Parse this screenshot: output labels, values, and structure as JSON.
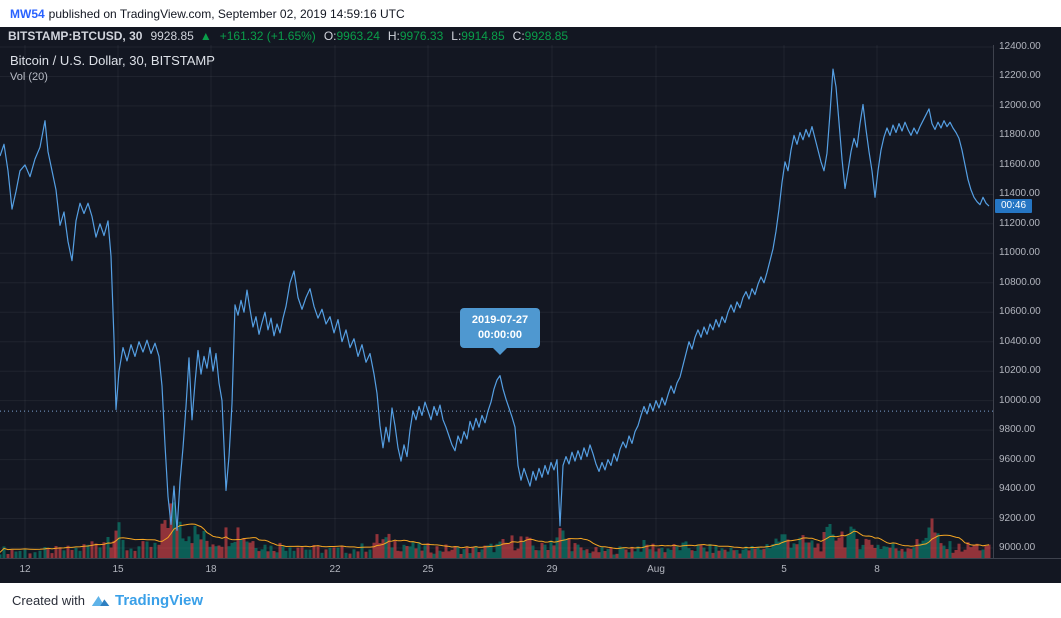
{
  "header": {
    "author": "MW54",
    "published_text": "published on TradingView.com, September 02, 2019 14:59:16 UTC"
  },
  "symbol_bar": {
    "symbol": "BITSTAMP:BTCUSD, 30",
    "last_price": "9928.85",
    "direction_arrow": "▲",
    "change": "+161.32 (+1.65%)",
    "ohlc": {
      "o_label": "O:",
      "o": "9963.24",
      "h_label": "H:",
      "h": "9976.33",
      "l_label": "L:",
      "l": "9914.85",
      "c_label": "C:",
      "c": "9928.85"
    }
  },
  "chart": {
    "legend": "Bitcoin / U.S. Dollar, 30, BITSTAMP",
    "vol_legend": "Vol (20)",
    "tooltip": {
      "date": "2019-07-27",
      "time": "00:00:00"
    },
    "countdown": "00:46"
  },
  "chart_data": {
    "type": "line",
    "title": "Bitcoin / U.S. Dollar, 30, BITSTAMP",
    "symbol": "BITSTAMP:BTCUSD",
    "interval": "30",
    "y_min": 9000,
    "y_max": 12400,
    "y_step": 200,
    "last_price": 9928.85,
    "ohlc": {
      "open": 9963.24,
      "high": 9976.33,
      "low": 9914.85,
      "close": 9928.85
    },
    "change": 161.32,
    "change_pct": 1.65,
    "x_ticks": {
      "labels": [
        "12",
        "15",
        "18",
        "22",
        "25",
        "29",
        "Aug",
        "5",
        "8"
      ],
      "pos": [
        25,
        118,
        211,
        335,
        428,
        552,
        656,
        784,
        877
      ]
    },
    "price_points": [
      [
        0,
        11660
      ],
      [
        4,
        11740
      ],
      [
        8,
        11560
      ],
      [
        12,
        11300
      ],
      [
        16,
        11420
      ],
      [
        20,
        11560
      ],
      [
        25,
        11600
      ],
      [
        30,
        11520
      ],
      [
        35,
        11640
      ],
      [
        40,
        11720
      ],
      [
        45,
        11900
      ],
      [
        48,
        11690
      ],
      [
        52,
        11560
      ],
      [
        56,
        11430
      ],
      [
        60,
        11190
      ],
      [
        64,
        11280
      ],
      [
        68,
        11080
      ],
      [
        72,
        10950
      ],
      [
        76,
        11220
      ],
      [
        80,
        11340
      ],
      [
        84,
        11270
      ],
      [
        88,
        11340
      ],
      [
        92,
        11250
      ],
      [
        96,
        11110
      ],
      [
        100,
        11200
      ],
      [
        104,
        11120
      ],
      [
        108,
        11220
      ],
      [
        111,
        10980
      ],
      [
        114,
        10420
      ],
      [
        116,
        9940
      ],
      [
        119,
        10200
      ],
      [
        123,
        10360
      ],
      [
        127,
        10270
      ],
      [
        131,
        10380
      ],
      [
        135,
        10300
      ],
      [
        139,
        10400
      ],
      [
        143,
        10330
      ],
      [
        147,
        10410
      ],
      [
        151,
        10320
      ],
      [
        155,
        10390
      ],
      [
        159,
        10300
      ],
      [
        162,
        10100
      ],
      [
        165,
        9700
      ],
      [
        168,
        9350
      ],
      [
        171,
        9160
      ],
      [
        174,
        9420
      ],
      [
        177,
        9120
      ],
      [
        180,
        9450
      ],
      [
        183,
        9680
      ],
      [
        186,
        9960
      ],
      [
        189,
        10290
      ],
      [
        192,
        9870
      ],
      [
        195,
        10120
      ],
      [
        198,
        10340
      ],
      [
        201,
        10180
      ],
      [
        204,
        10300
      ],
      [
        207,
        10220
      ],
      [
        210,
        10360
      ],
      [
        213,
        10200
      ],
      [
        216,
        10320
      ],
      [
        219,
        10120
      ],
      [
        222,
        10000
      ],
      [
        226,
        9390
      ],
      [
        229,
        9620
      ],
      [
        232,
        9980
      ],
      [
        235,
        10650
      ],
      [
        238,
        10580
      ],
      [
        241,
        10680
      ],
      [
        244,
        10600
      ],
      [
        247,
        10750
      ],
      [
        250,
        10620
      ],
      [
        253,
        10500
      ],
      [
        256,
        10570
      ],
      [
        259,
        10450
      ],
      [
        262,
        10530
      ],
      [
        265,
        10600
      ],
      [
        268,
        10480
      ],
      [
        271,
        10560
      ],
      [
        274,
        10440
      ],
      [
        277,
        10520
      ],
      [
        280,
        10460
      ],
      [
        283,
        10560
      ],
      [
        286,
        10640
      ],
      [
        290,
        10800
      ],
      [
        294,
        10880
      ],
      [
        298,
        10700
      ],
      [
        302,
        10620
      ],
      [
        306,
        10700
      ],
      [
        310,
        10760
      ],
      [
        314,
        10640
      ],
      [
        318,
        10560
      ],
      [
        322,
        10620
      ],
      [
        326,
        10520
      ],
      [
        330,
        10570
      ],
      [
        334,
        10460
      ],
      [
        338,
        10550
      ],
      [
        342,
        10400
      ],
      [
        346,
        10480
      ],
      [
        350,
        10360
      ],
      [
        354,
        10420
      ],
      [
        358,
        10300
      ],
      [
        362,
        10380
      ],
      [
        366,
        10260
      ],
      [
        370,
        10320
      ],
      [
        374,
        10180
      ],
      [
        377,
        10050
      ],
      [
        380,
        9830
      ],
      [
        383,
        9680
      ],
      [
        386,
        9820
      ],
      [
        389,
        9720
      ],
      [
        392,
        9950
      ],
      [
        395,
        9830
      ],
      [
        398,
        9680
      ],
      [
        401,
        9590
      ],
      [
        404,
        9700
      ],
      [
        407,
        9620
      ],
      [
        410,
        9800
      ],
      [
        413,
        9930
      ],
      [
        416,
        9870
      ],
      [
        419,
        9960
      ],
      [
        422,
        9900
      ],
      [
        425,
        9990
      ],
      [
        428,
        9930
      ],
      [
        431,
        9870
      ],
      [
        434,
        9960
      ],
      [
        437,
        9900
      ],
      [
        440,
        9970
      ],
      [
        443,
        9870
      ],
      [
        446,
        9820
      ],
      [
        449,
        9760
      ],
      [
        452,
        9700
      ],
      [
        455,
        9660
      ],
      [
        458,
        9760
      ],
      [
        461,
        9710
      ],
      [
        464,
        9790
      ],
      [
        467,
        9740
      ],
      [
        470,
        9860
      ],
      [
        473,
        9800
      ],
      [
        476,
        9880
      ],
      [
        479,
        9820
      ],
      [
        482,
        9900
      ],
      [
        485,
        9850
      ],
      [
        488,
        9930
      ],
      [
        491,
        9990
      ],
      [
        494,
        10080
      ],
      [
        497,
        10140
      ],
      [
        500,
        10170
      ],
      [
        503,
        10080
      ],
      [
        506,
        10010
      ],
      [
        509,
        9950
      ],
      [
        512,
        9890
      ],
      [
        515,
        9820
      ],
      [
        518,
        9560
      ],
      [
        521,
        9460
      ],
      [
        524,
        9540
      ],
      [
        527,
        9480
      ],
      [
        530,
        9420
      ],
      [
        533,
        9520
      ],
      [
        536,
        9460
      ],
      [
        539,
        9540
      ],
      [
        542,
        9480
      ],
      [
        545,
        9560
      ],
      [
        548,
        9500
      ],
      [
        551,
        9580
      ],
      [
        554,
        9530
      ],
      [
        557,
        9600
      ],
      [
        560,
        9150
      ],
      [
        563,
        9560
      ],
      [
        566,
        9620
      ],
      [
        569,
        9570
      ],
      [
        572,
        9650
      ],
      [
        575,
        9590
      ],
      [
        578,
        9660
      ],
      [
        581,
        9600
      ],
      [
        584,
        9680
      ],
      [
        587,
        9620
      ],
      [
        590,
        9700
      ],
      [
        593,
        9640
      ],
      [
        596,
        9570
      ],
      [
        599,
        9520
      ],
      [
        602,
        9580
      ],
      [
        605,
        9530
      ],
      [
        608,
        9600
      ],
      [
        611,
        9560
      ],
      [
        614,
        9640
      ],
      [
        617,
        9590
      ],
      [
        620,
        9670
      ],
      [
        623,
        9720
      ],
      [
        626,
        9680
      ],
      [
        629,
        9760
      ],
      [
        632,
        9710
      ],
      [
        635,
        9790
      ],
      [
        638,
        9830
      ],
      [
        641,
        9900
      ],
      [
        644,
        9960
      ],
      [
        647,
        9910
      ],
      [
        650,
        9980
      ],
      [
        653,
        9930
      ],
      [
        656,
        10000
      ],
      [
        659,
        9950
      ],
      [
        662,
        10020
      ],
      [
        665,
        9970
      ],
      [
        668,
        10040
      ],
      [
        671,
        10100
      ],
      [
        674,
        10050
      ],
      [
        677,
        10120
      ],
      [
        680,
        10160
      ],
      [
        683,
        10240
      ],
      [
        686,
        10320
      ],
      [
        689,
        10400
      ],
      [
        692,
        10350
      ],
      [
        695,
        10430
      ],
      [
        698,
        10480
      ],
      [
        701,
        10430
      ],
      [
        704,
        10500
      ],
      [
        707,
        10450
      ],
      [
        710,
        10520
      ],
      [
        713,
        10480
      ],
      [
        716,
        10550
      ],
      [
        719,
        10500
      ],
      [
        722,
        10570
      ],
      [
        725,
        10530
      ],
      [
        728,
        10600
      ],
      [
        731,
        10650
      ],
      [
        734,
        10600
      ],
      [
        737,
        10670
      ],
      [
        740,
        10630
      ],
      [
        743,
        10700
      ],
      [
        746,
        10740
      ],
      [
        749,
        10690
      ],
      [
        752,
        10760
      ],
      [
        755,
        10720
      ],
      [
        758,
        10790
      ],
      [
        761,
        10840
      ],
      [
        764,
        10800
      ],
      [
        767,
        10870
      ],
      [
        770,
        10950
      ],
      [
        773,
        11030
      ],
      [
        776,
        11150
      ],
      [
        779,
        11300
      ],
      [
        782,
        11480
      ],
      [
        785,
        11620
      ],
      [
        788,
        11560
      ],
      [
        791,
        11700
      ],
      [
        794,
        11800
      ],
      [
        797,
        11740
      ],
      [
        800,
        11820
      ],
      [
        803,
        11770
      ],
      [
        806,
        11840
      ],
      [
        809,
        11790
      ],
      [
        812,
        11860
      ],
      [
        815,
        11780
      ],
      [
        818,
        11700
      ],
      [
        821,
        11620
      ],
      [
        824,
        11560
      ],
      [
        827,
        11680
      ],
      [
        830,
        11950
      ],
      [
        833,
        12250
      ],
      [
        836,
        12130
      ],
      [
        839,
        11890
      ],
      [
        842,
        11640
      ],
      [
        845,
        11440
      ],
      [
        848,
        11560
      ],
      [
        851,
        11690
      ],
      [
        854,
        11780
      ],
      [
        857,
        11720
      ],
      [
        860,
        11880
      ],
      [
        863,
        12010
      ],
      [
        866,
        11840
      ],
      [
        869,
        11690
      ],
      [
        872,
        11560
      ],
      [
        875,
        11380
      ],
      [
        878,
        11560
      ],
      [
        881,
        11700
      ],
      [
        884,
        11790
      ],
      [
        887,
        11850
      ],
      [
        890,
        11800
      ],
      [
        893,
        11870
      ],
      [
        896,
        11820
      ],
      [
        899,
        11880
      ],
      [
        902,
        11830
      ],
      [
        905,
        11890
      ],
      [
        908,
        11840
      ],
      [
        911,
        11800
      ],
      [
        914,
        11850
      ],
      [
        917,
        11810
      ],
      [
        920,
        11860
      ],
      [
        923,
        11900
      ],
      [
        926,
        11940
      ],
      [
        929,
        11980
      ],
      [
        932,
        11880
      ],
      [
        935,
        11840
      ],
      [
        938,
        11890
      ],
      [
        941,
        11850
      ],
      [
        944,
        11900
      ],
      [
        947,
        11860
      ],
      [
        950,
        11890
      ],
      [
        953,
        11850
      ],
      [
        956,
        11820
      ],
      [
        959,
        11780
      ],
      [
        962,
        11700
      ],
      [
        965,
        11600
      ],
      [
        968,
        11500
      ],
      [
        971,
        11430
      ],
      [
        974,
        11380
      ],
      [
        977,
        11350
      ],
      [
        980,
        11330
      ],
      [
        983,
        11380
      ],
      [
        986,
        11340
      ],
      [
        989,
        11320
      ]
    ],
    "volume_profile": [
      [
        0,
        8
      ],
      [
        40,
        7
      ],
      [
        80,
        9
      ],
      [
        110,
        22
      ],
      [
        116,
        30
      ],
      [
        125,
        10
      ],
      [
        160,
        12
      ],
      [
        165,
        40
      ],
      [
        170,
        46
      ],
      [
        178,
        38
      ],
      [
        185,
        30
      ],
      [
        195,
        24
      ],
      [
        210,
        16
      ],
      [
        225,
        22
      ],
      [
        235,
        30
      ],
      [
        250,
        18
      ],
      [
        270,
        10
      ],
      [
        290,
        14
      ],
      [
        310,
        9
      ],
      [
        335,
        8
      ],
      [
        360,
        9
      ],
      [
        380,
        18
      ],
      [
        400,
        14
      ],
      [
        420,
        10
      ],
      [
        450,
        9
      ],
      [
        470,
        8
      ],
      [
        490,
        10
      ],
      [
        500,
        12
      ],
      [
        520,
        18
      ],
      [
        540,
        9
      ],
      [
        560,
        24
      ],
      [
        580,
        8
      ],
      [
        600,
        7
      ],
      [
        620,
        8
      ],
      [
        645,
        12
      ],
      [
        665,
        9
      ],
      [
        685,
        11
      ],
      [
        710,
        9
      ],
      [
        735,
        8
      ],
      [
        760,
        9
      ],
      [
        782,
        20
      ],
      [
        800,
        16
      ],
      [
        820,
        12
      ],
      [
        833,
        28
      ],
      [
        845,
        22
      ],
      [
        863,
        18
      ],
      [
        880,
        12
      ],
      [
        900,
        10
      ],
      [
        920,
        14
      ],
      [
        930,
        38
      ],
      [
        940,
        12
      ],
      [
        960,
        10
      ],
      [
        975,
        12
      ],
      [
        989,
        9
      ]
    ]
  },
  "footer": {
    "created_with": "Created with",
    "brand": "TradingView"
  },
  "colors": {
    "bg": "#131722",
    "line": "#559fe3",
    "grid": "rgba(255,255,255,0.055)",
    "vol_up": "rgba(8,153,129,0.55)",
    "vol_down": "rgba(230,70,75,0.6)",
    "vol_ma": "#f5a623",
    "last_price_line": "rgba(137,178,228,0.9)",
    "green": "#0a9e4a",
    "tooltip_bg": "#4f98d0",
    "badge_bg": "#2576c4",
    "axis_text": "#b2b5be"
  }
}
